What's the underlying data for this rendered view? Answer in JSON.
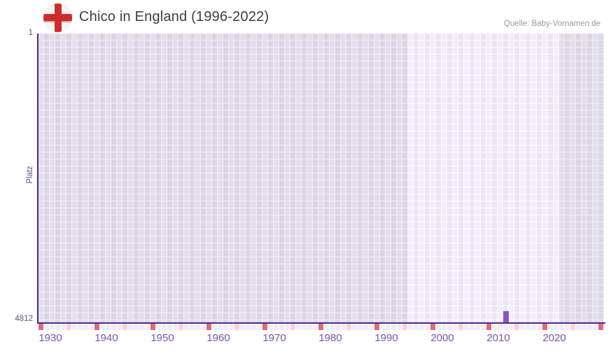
{
  "header": {
    "title": "Chico in England (1996-2022)",
    "source": "Quelle: Baby-Vornamen.de",
    "flag_icon": "england-flag"
  },
  "chart_data": {
    "type": "heatmap",
    "title": "Chico in England (1996-2022)",
    "source": "Quelle: Baby-Vornamen.de",
    "name": "Chico",
    "country": "England",
    "period_label": "1996-2022",
    "ylabel": "Platz",
    "y_axis": {
      "top_label": "1",
      "bottom_label": "4812",
      "min": 1,
      "max": 4812,
      "direction": "1 is best (top)"
    },
    "x_axis": {
      "start_year": 1928,
      "end_year": 2028,
      "tick_years": [
        1930,
        1940,
        1950,
        1960,
        1970,
        1980,
        1990,
        2000,
        2010,
        2020
      ]
    },
    "series": [
      {
        "name": "Chico",
        "points": [
          {
            "year": 2011,
            "rank": 4812
          }
        ]
      }
    ],
    "bands": {
      "plain_from": 1928,
      "plain_to": 1993,
      "light_from": 1994,
      "light_to": 2020,
      "dim_from": 2021,
      "dim_to": 2028
    },
    "ruler_strip": {
      "interval": 10,
      "red_offset": 0,
      "pink_offset": 5
    },
    "grid": "on",
    "legend": "none",
    "colors": {
      "accent": "#8c54c2",
      "axis": "#4e2a85",
      "tick_label": "#7b52a8",
      "flag_red": "#cf2b2e",
      "left_cell_a": "#e3deec",
      "left_cell_b": "#dcd5e7",
      "left_gutter": "#f1eef4",
      "mid_cell_a": "#f2eef9",
      "mid_cell_b": "#ebe5f4",
      "mid_gutter": "#fcfbfe",
      "dim_cell_a": "#e2dfe9",
      "dim_cell_b": "#dbd7e4",
      "dim_gutter": "#efedf1",
      "strip_pale": "#f1ecf6",
      "strip_red": "#e0697a",
      "strip_pink": "#f3d4dd"
    }
  }
}
